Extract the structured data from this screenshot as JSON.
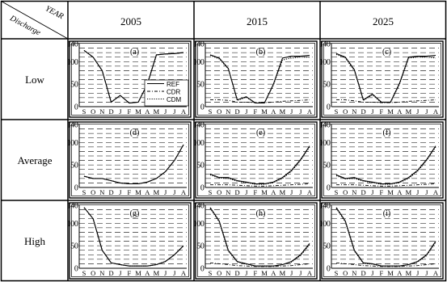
{
  "corner": {
    "top": "YEAR",
    "bottom": "Discharge"
  },
  "years": [
    "2005",
    "2015",
    "2025"
  ],
  "rows": [
    "Low",
    "Average",
    "High"
  ],
  "months": [
    "S",
    "O",
    "N",
    "D",
    "J",
    "F",
    "M",
    "A",
    "M",
    "J",
    "J",
    "A"
  ],
  "yticks": [
    "0",
    "50",
    "100",
    "140"
  ],
  "legend": [
    "REF",
    "CDR",
    "CDM"
  ],
  "chart_data": {
    "type": "line",
    "x": [
      "S",
      "O",
      "N",
      "D",
      "J",
      "F",
      "M",
      "A",
      "M",
      "J",
      "J",
      "A"
    ],
    "ylim": [
      0,
      140
    ],
    "yticks": [
      0,
      50,
      100,
      140
    ],
    "grid": "dashed horizontal",
    "legend_position": "bottom-right of panel (a)",
    "panels": [
      {
        "label": "(a)",
        "discharge": "Low",
        "year": "2005",
        "series": [
          {
            "name": "REF",
            "values": [
              125,
              110,
              80,
              10,
              25,
              8,
              10,
              50,
              115,
              117,
              118,
              120
            ]
          },
          {
            "name": "CDR",
            "values": [
              125,
              110,
              80,
              10,
              25,
              8,
              10,
              50,
              115,
              117,
              118,
              120
            ]
          },
          {
            "name": "CDM",
            "values": [
              125,
              110,
              80,
              10,
              25,
              8,
              10,
              50,
              115,
              117,
              118,
              120
            ]
          }
        ]
      },
      {
        "label": "(b)",
        "discharge": "Low",
        "year": "2015",
        "series": [
          {
            "name": "REF",
            "values": [
              115,
              108,
              85,
              15,
              22,
              8,
              8,
              50,
              108,
              112,
              112,
              114
            ]
          },
          {
            "name": "CDR",
            "values": [
              15,
              15,
              14,
              10,
              10,
              9,
              9,
              10,
              12,
              13,
              14,
              15
            ]
          },
          {
            "name": "CDM",
            "values": [
              114,
              106,
              84,
              14,
              21,
              8,
              8,
              48,
              104,
              108,
              110,
              110
            ]
          }
        ]
      },
      {
        "label": "(c)",
        "discharge": "Low",
        "year": "2025",
        "series": [
          {
            "name": "REF",
            "values": [
              118,
              110,
              82,
              15,
              28,
              10,
              10,
              52,
              110,
              112,
              112,
              114
            ]
          },
          {
            "name": "CDR",
            "values": [
              15,
              15,
              13,
              10,
              10,
              9,
              9,
              10,
              12,
              13,
              14,
              15
            ]
          },
          {
            "name": "CDM",
            "values": [
              116,
              108,
              80,
              14,
              26,
              9,
              9,
              50,
              108,
              110,
              110,
              108
            ]
          }
        ]
      },
      {
        "label": "(d)",
        "discharge": "Average",
        "year": "2005",
        "series": [
          {
            "name": "REF",
            "values": [
              25,
              20,
              20,
              15,
              10,
              8,
              8,
              12,
              20,
              35,
              60,
              95
            ]
          },
          {
            "name": "CDR",
            "values": [
              25,
              20,
              20,
              15,
              10,
              8,
              8,
              12,
              20,
              35,
              60,
              95
            ]
          },
          {
            "name": "CDM",
            "values": [
              25,
              20,
              20,
              15,
              10,
              8,
              8,
              12,
              20,
              35,
              60,
              95
            ]
          }
        ]
      },
      {
        "label": "(e)",
        "discharge": "Average",
        "year": "2015",
        "series": [
          {
            "name": "REF",
            "values": [
              30,
              22,
              22,
              15,
              12,
              8,
              8,
              12,
              22,
              38,
              62,
              92
            ]
          },
          {
            "name": "CDR",
            "values": [
              6,
              6,
              6,
              5,
              4,
              3,
              3,
              4,
              5,
              6,
              7,
              8
            ]
          },
          {
            "name": "CDM",
            "values": [
              28,
              21,
              20,
              14,
              11,
              7,
              7,
              11,
              20,
              36,
              60,
              90
            ]
          }
        ]
      },
      {
        "label": "(f)",
        "discharge": "Average",
        "year": "2025",
        "series": [
          {
            "name": "REF",
            "values": [
              28,
              20,
              22,
              15,
              12,
              8,
              8,
              12,
              22,
              38,
              62,
              92
            ]
          },
          {
            "name": "CDR",
            "values": [
              6,
              6,
              6,
              5,
              4,
              3,
              3,
              4,
              5,
              6,
              7,
              8
            ]
          },
          {
            "name": "CDM",
            "values": [
              26,
              19,
              20,
              14,
              11,
              7,
              7,
              11,
              20,
              36,
              60,
              90
            ]
          }
        ]
      },
      {
        "label": "(g)",
        "discharge": "High",
        "year": "2005",
        "series": [
          {
            "name": "REF",
            "values": [
              135,
              110,
              40,
              12,
              8,
              5,
              5,
              5,
              8,
              15,
              30,
              50
            ]
          },
          {
            "name": "CDR",
            "values": [
              135,
              110,
              40,
              12,
              8,
              5,
              5,
              5,
              8,
              15,
              30,
              50
            ]
          },
          {
            "name": "CDM",
            "values": [
              135,
              110,
              40,
              12,
              8,
              5,
              5,
              5,
              8,
              15,
              30,
              50
            ]
          }
        ]
      },
      {
        "label": "(h)",
        "discharge": "High",
        "year": "2015",
        "series": [
          {
            "name": "REF",
            "values": [
              135,
              105,
              40,
              15,
              10,
              5,
              5,
              5,
              8,
              15,
              30,
              55
            ]
          },
          {
            "name": "CDR",
            "values": [
              12,
              10,
              8,
              6,
              5,
              4,
              4,
              4,
              5,
              6,
              8,
              10
            ]
          },
          {
            "name": "CDM",
            "values": [
              133,
              103,
              38,
              14,
              9,
              5,
              5,
              5,
              8,
              14,
              28,
              52
            ]
          }
        ]
      },
      {
        "label": "(i)",
        "discharge": "High",
        "year": "2025",
        "series": [
          {
            "name": "REF",
            "values": [
              135,
              105,
              40,
              12,
              10,
              5,
              5,
              5,
              8,
              15,
              30,
              60
            ]
          },
          {
            "name": "CDR",
            "values": [
              12,
              10,
              8,
              6,
              5,
              4,
              4,
              4,
              5,
              6,
              8,
              10
            ]
          },
          {
            "name": "CDM",
            "values": [
              133,
              103,
              38,
              11,
              9,
              5,
              5,
              5,
              8,
              14,
              28,
              58
            ]
          }
        ]
      }
    ]
  }
}
